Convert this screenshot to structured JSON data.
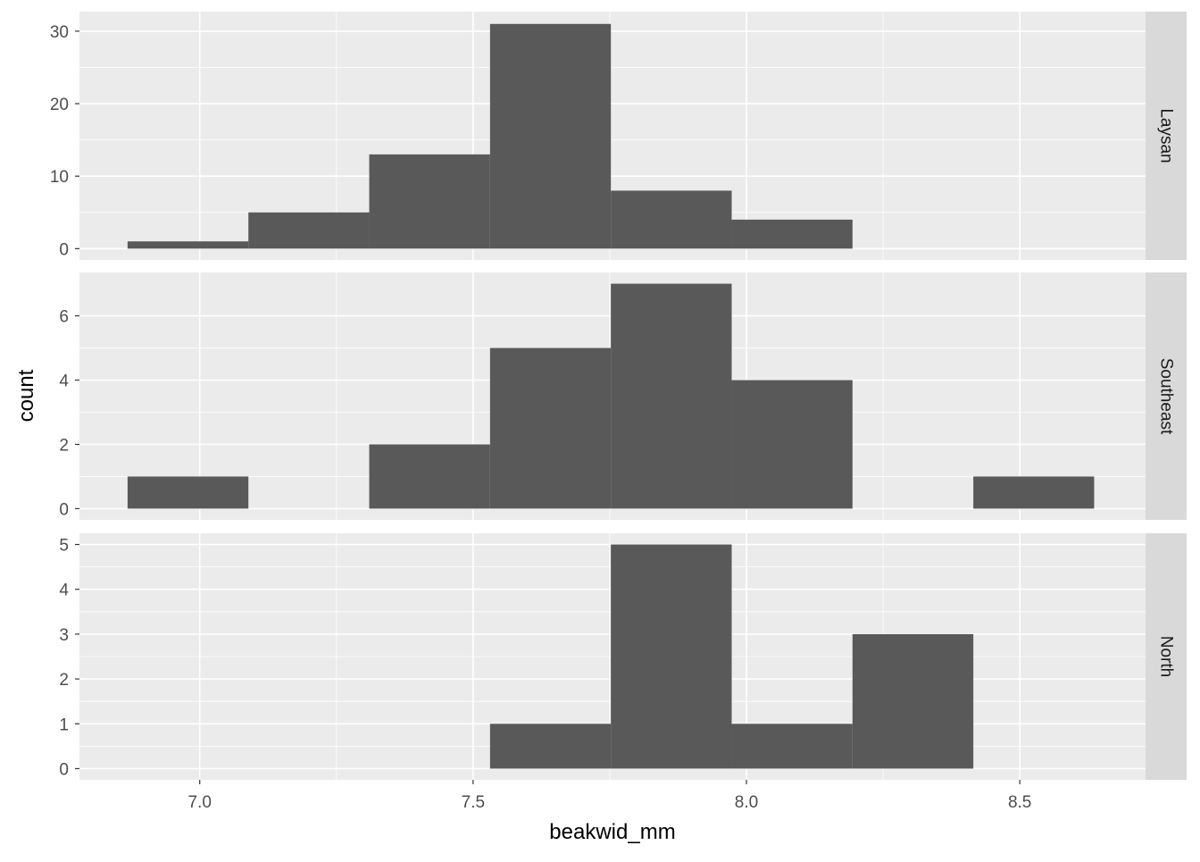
{
  "chart_data": {
    "type": "bar",
    "subtype": "faceted-histogram",
    "xlabel": "beakwid_mm",
    "ylabel": "count",
    "xlim": [
      6.78,
      8.73
    ],
    "x_ticks": [
      7.0,
      7.5,
      8.0,
      8.5
    ],
    "x_tick_labels": [
      "7.0",
      "7.5",
      "8.0",
      "8.5"
    ],
    "bin_edges": [
      6.868,
      7.089,
      7.31,
      7.531,
      7.752,
      7.973,
      8.194,
      8.415,
      8.636
    ],
    "bar_color": "#595959",
    "panel_background": "#ebebeb",
    "strip_background": "#d9d9d9",
    "gridline_color": "#ffffff",
    "grid": true,
    "facets": [
      {
        "label": "Laysan",
        "counts": [
          1,
          5,
          13,
          31,
          8,
          4,
          0,
          0
        ],
        "ylim": [
          -1.56,
          32.7
        ],
        "y_ticks": [
          0,
          10,
          20,
          30
        ],
        "y_tick_labels": [
          "0",
          "10",
          "20",
          "30"
        ]
      },
      {
        "label": "Southeast",
        "counts": [
          1,
          0,
          2,
          5,
          7,
          4,
          0,
          1
        ],
        "ylim": [
          -0.35,
          7.35
        ],
        "y_ticks": [
          0,
          2,
          4,
          6
        ],
        "y_tick_labels": [
          "0",
          "2",
          "4",
          "6"
        ]
      },
      {
        "label": "North",
        "counts": [
          0,
          0,
          0,
          1,
          5,
          1,
          3,
          0
        ],
        "ylim": [
          -0.25,
          5.25
        ],
        "y_ticks": [
          0,
          1,
          2,
          3,
          4,
          5
        ],
        "y_tick_labels": [
          "0",
          "1",
          "2",
          "3",
          "4",
          "5"
        ]
      }
    ]
  }
}
